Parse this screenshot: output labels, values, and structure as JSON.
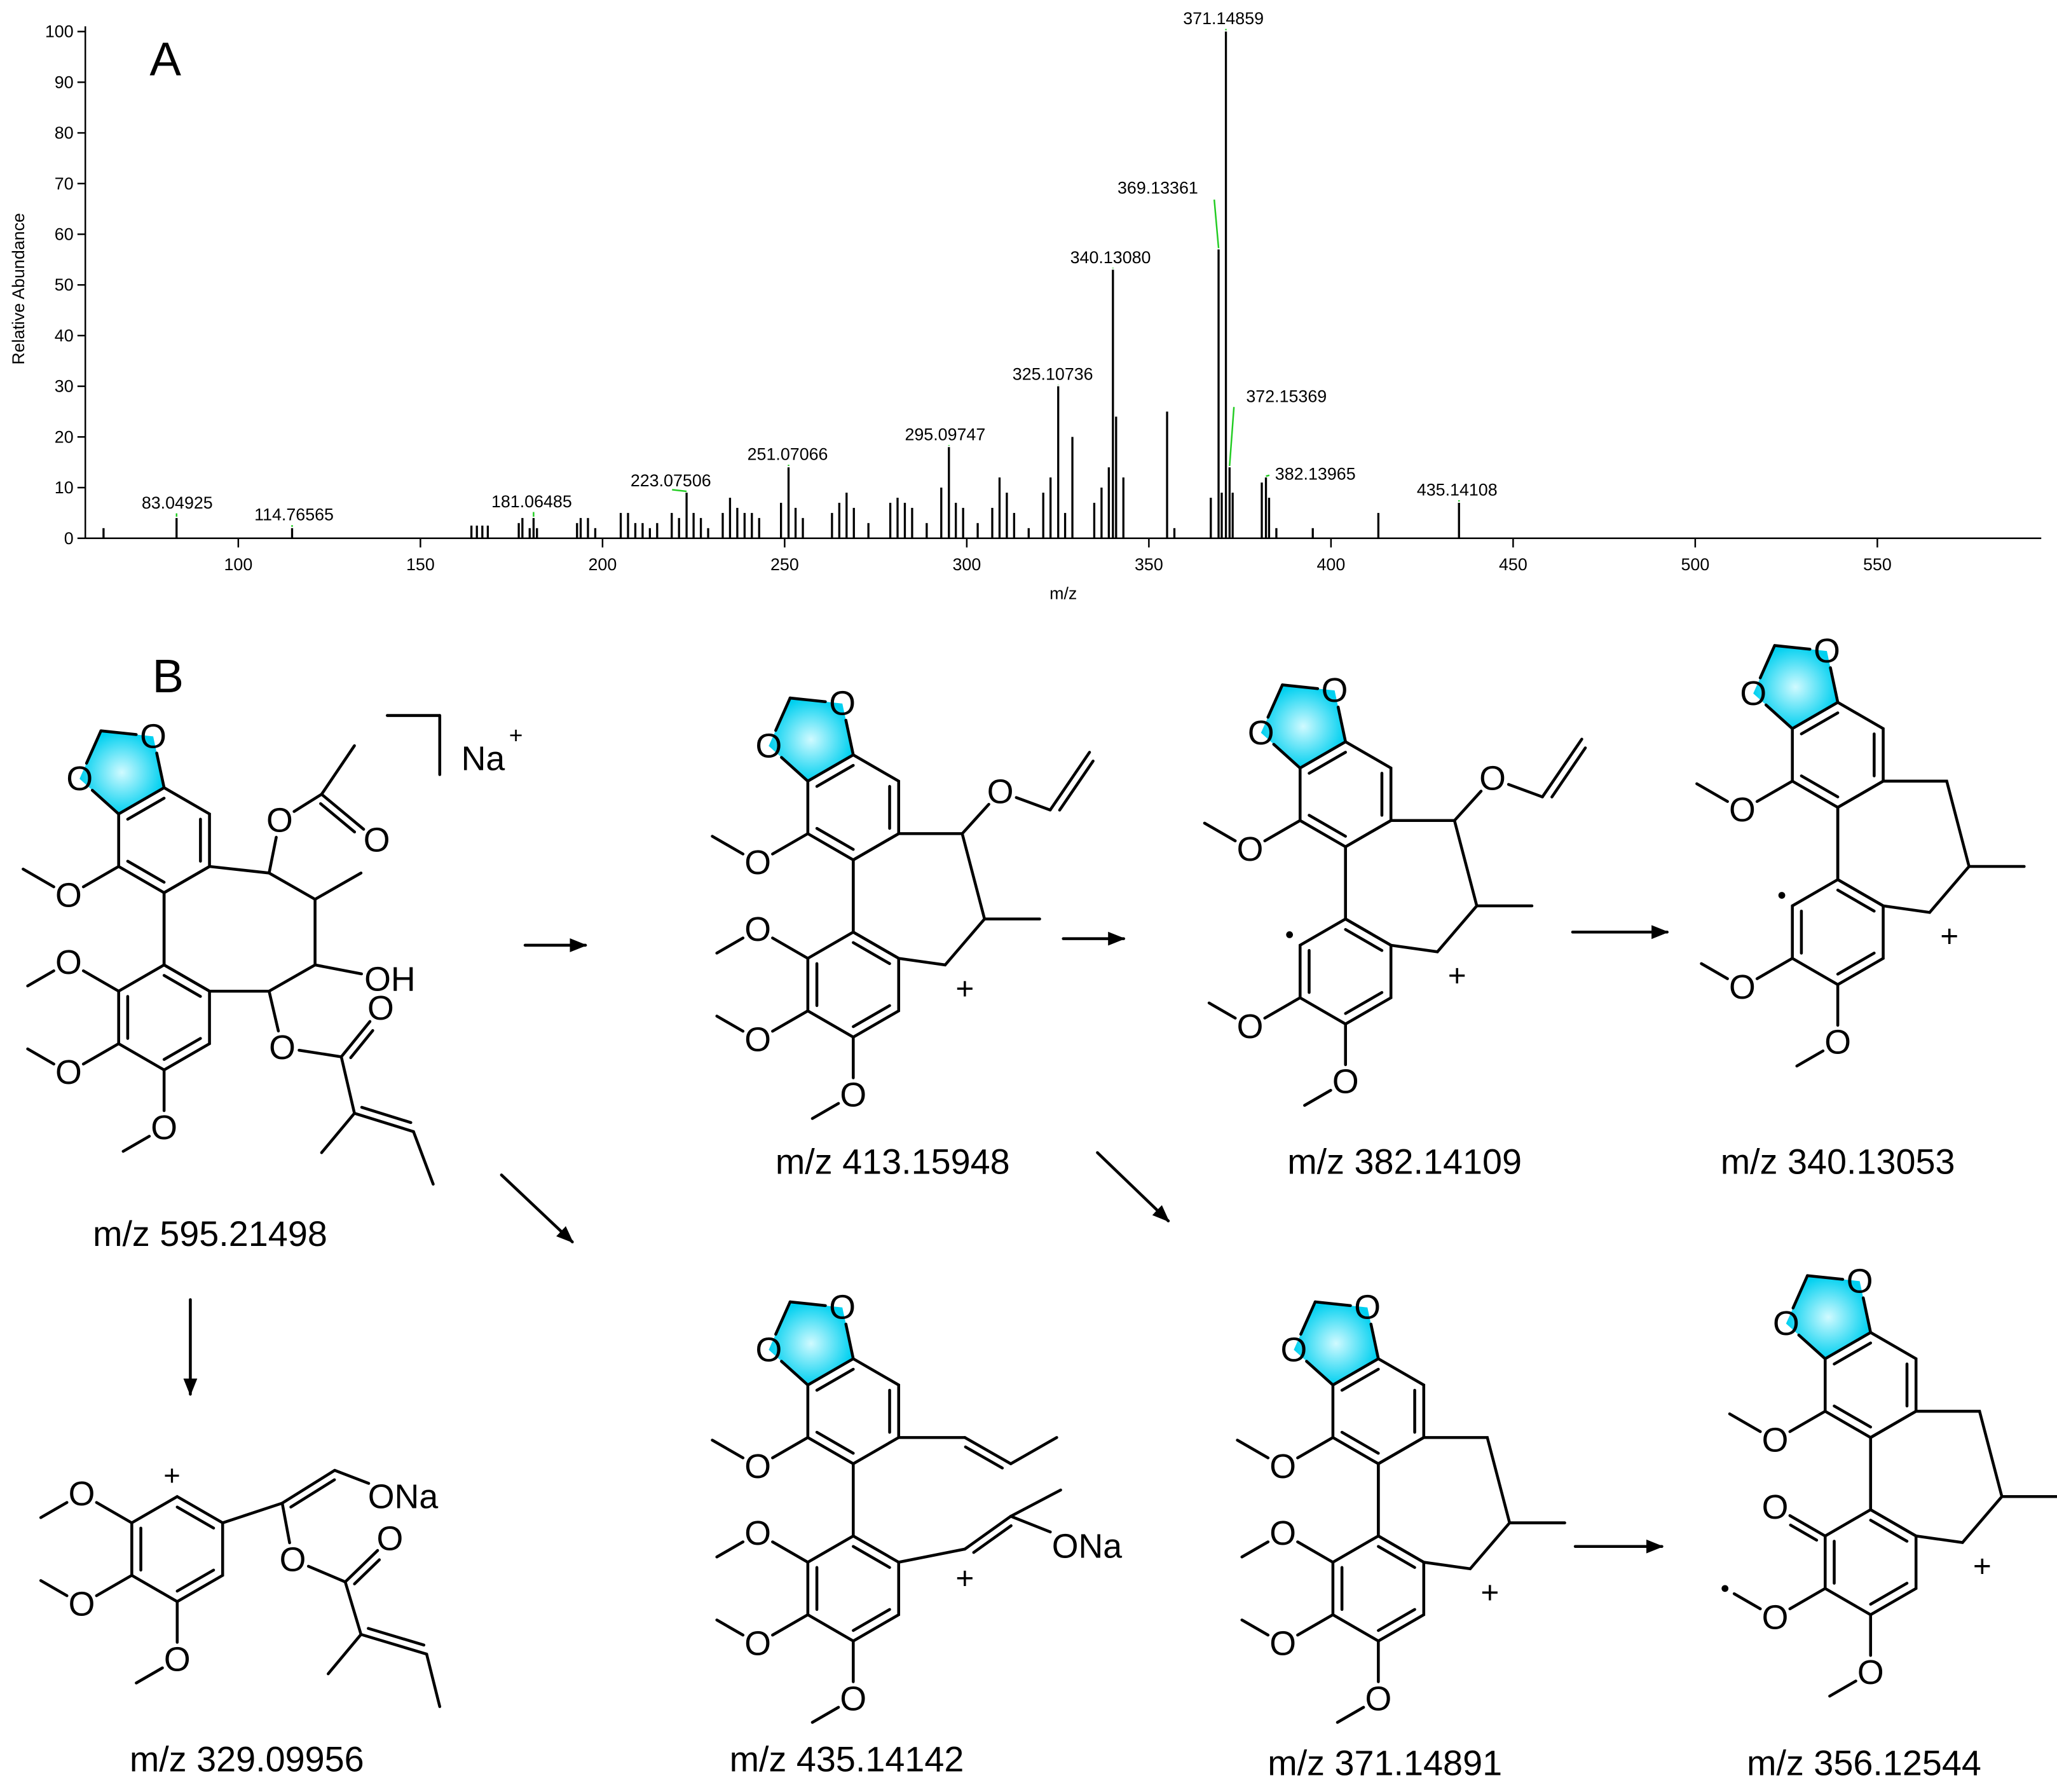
{
  "chart_data": {
    "type": "bar",
    "panel": "A",
    "xlabel": "m/z",
    "ylabel": "Relative Abundance",
    "x": [
      63,
      83.04925,
      114.76565,
      164,
      165.5,
      167,
      168.5,
      177,
      178,
      180,
      181.06485,
      182,
      193,
      194,
      196,
      198,
      205,
      207,
      209,
      211,
      213,
      215,
      219,
      221,
      223.07506,
      225,
      227,
      229,
      233,
      235,
      237,
      239,
      241,
      243,
      249,
      251.07066,
      253,
      255,
      263,
      265,
      267,
      269,
      273,
      279,
      281,
      283,
      285,
      289,
      293,
      295.09747,
      297,
      299,
      303,
      307,
      309,
      311,
      313,
      317,
      321,
      323,
      325.10736,
      327,
      329,
      335,
      337,
      339,
      340.1308,
      341,
      343,
      355,
      357,
      367,
      369.13361,
      370,
      371.14859,
      372.15369,
      373,
      381,
      382.13965,
      383,
      385,
      395,
      413,
      435.14108
    ],
    "x_labels": [
      null,
      "83.04925",
      "114.76565",
      null,
      null,
      null,
      null,
      null,
      null,
      null,
      "181.06485",
      null,
      null,
      null,
      null,
      null,
      null,
      null,
      null,
      null,
      null,
      null,
      null,
      null,
      "223.07506",
      null,
      null,
      null,
      null,
      null,
      null,
      null,
      null,
      null,
      null,
      "251.07066",
      null,
      null,
      null,
      null,
      null,
      null,
      null,
      null,
      null,
      null,
      null,
      null,
      null,
      "295.09747",
      null,
      null,
      null,
      null,
      null,
      null,
      null,
      null,
      null,
      null,
      "325.10736",
      null,
      null,
      null,
      null,
      null,
      "340.13080",
      null,
      null,
      null,
      null,
      null,
      "369.13361",
      null,
      "371.14859",
      "372.15369",
      null,
      null,
      "382.13965",
      null,
      null,
      null,
      null,
      "435.14108"
    ],
    "values": [
      2,
      4,
      2,
      2.5,
      2.5,
      2.5,
      2.5,
      3,
      4,
      2,
      4,
      2,
      3,
      4,
      4,
      2,
      5,
      5,
      3,
      3,
      2,
      3,
      5,
      4,
      9,
      5,
      4,
      2,
      5,
      8,
      6,
      5,
      5,
      4,
      7,
      14,
      6,
      4,
      5,
      7,
      9,
      6,
      3,
      7,
      8,
      7,
      6,
      3,
      10,
      18,
      7,
      6,
      3,
      6,
      12,
      9,
      5,
      2,
      9,
      12,
      30,
      5,
      20,
      7,
      10,
      14,
      53,
      24,
      12,
      25,
      2,
      8,
      57,
      9,
      100,
      14,
      9,
      11,
      12,
      8,
      2,
      2,
      5,
      7
    ],
    "color": "#000000",
    "xlim": [
      58,
      595
    ],
    "ylim": [
      0,
      100
    ],
    "xticks": [
      100,
      150,
      200,
      250,
      300,
      350,
      400,
      450,
      500,
      550
    ],
    "yticks": [
      0,
      10,
      20,
      30,
      40,
      50,
      60,
      70,
      80,
      90,
      100
    ]
  },
  "scheme": {
    "panel": "B",
    "structures": [
      {
        "label": "m/z 595.21498",
        "atoms": [
          "O",
          "O",
          "O",
          "O",
          "O",
          "O",
          "O",
          "O",
          "OH",
          "O",
          "O",
          "Na",
          "+"
        ]
      },
      {
        "label": "m/z 413.15948",
        "atoms": [
          "O",
          "O",
          "O",
          "O",
          "O",
          "O",
          "O",
          "+"
        ]
      },
      {
        "label": "m/z 382.14109",
        "atoms": [
          "O",
          "O",
          "O",
          "O",
          "O",
          "O",
          "+"
        ]
      },
      {
        "label": "m/z 340.13053",
        "atoms": [
          "O",
          "O",
          "O",
          "O",
          "O",
          "+"
        ]
      },
      {
        "label": "m/z 329.09956",
        "atoms": [
          "O",
          "O",
          "O",
          "+",
          "ONa",
          "O",
          "O"
        ]
      },
      {
        "label": "m/z 435.14142",
        "atoms": [
          "O",
          "O",
          "O",
          "O",
          "O",
          "O",
          "+",
          "ONa"
        ]
      },
      {
        "label": "m/z 371.14891",
        "atoms": [
          "O",
          "O",
          "O",
          "O",
          "O",
          "O",
          "+"
        ]
      },
      {
        "label": "m/z 356.12544",
        "atoms": [
          "O",
          "O",
          "O",
          "O",
          "O",
          "O",
          "+"
        ]
      }
    ]
  }
}
